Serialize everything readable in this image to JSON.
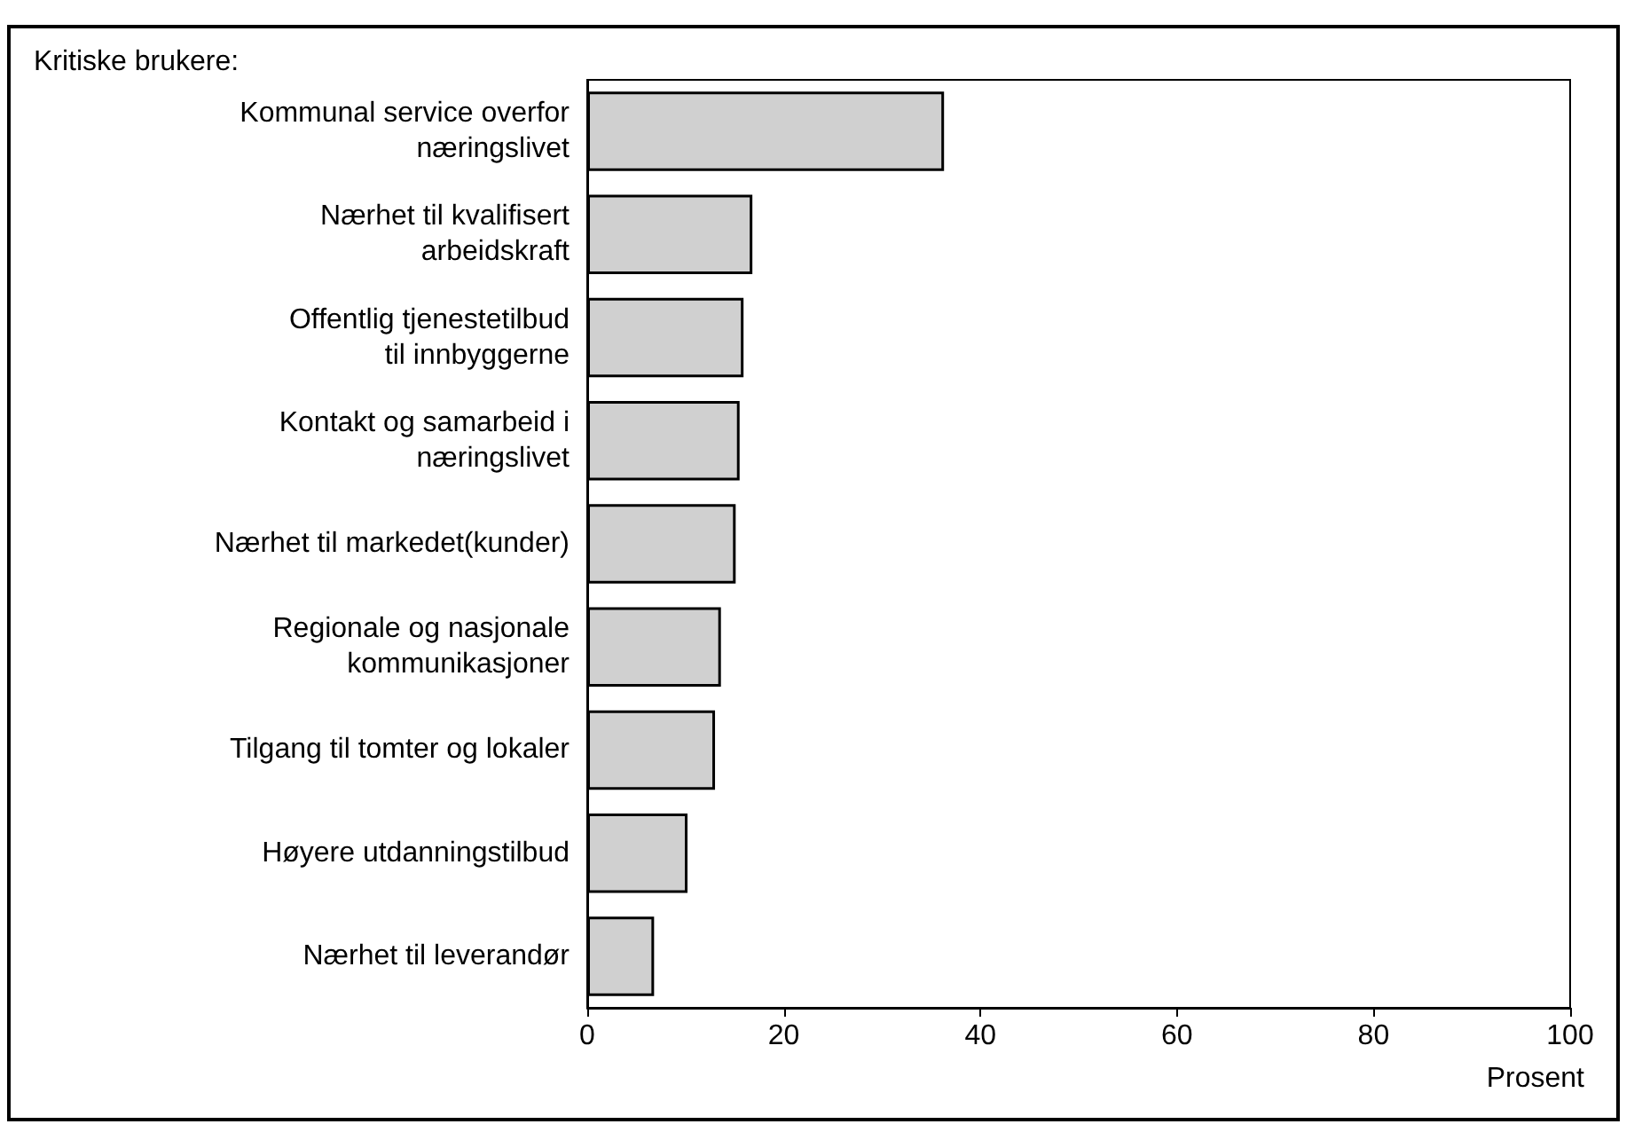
{
  "chart_data": {
    "type": "bar",
    "orientation": "horizontal",
    "title": "Kritiske brukere:",
    "xlabel": "Prosent",
    "categories": [
      "Kommunal service overfor\nnæringslivet",
      "Nærhet til kvalifisert\narbeidskraft",
      "Offentlig tjenestetilbud\ntil innbyggerne",
      "Kontakt og samarbeid i\nnæringslivet",
      "Nærhet til markedet(kunder)",
      "Regionale og nasjonale\nkommunikasjoner",
      "Tilgang til tomter og lokaler",
      "Høyere utdanningstilbud",
      "Nærhet til leverandør"
    ],
    "values": [
      36.3,
      16.8,
      15.9,
      15.5,
      15.1,
      13.6,
      13.0,
      10.2,
      6.8
    ],
    "color": "#d0d0d0",
    "xlim": [
      0,
      100
    ],
    "xticks": [
      0,
      20,
      40,
      60,
      80,
      100
    ]
  }
}
